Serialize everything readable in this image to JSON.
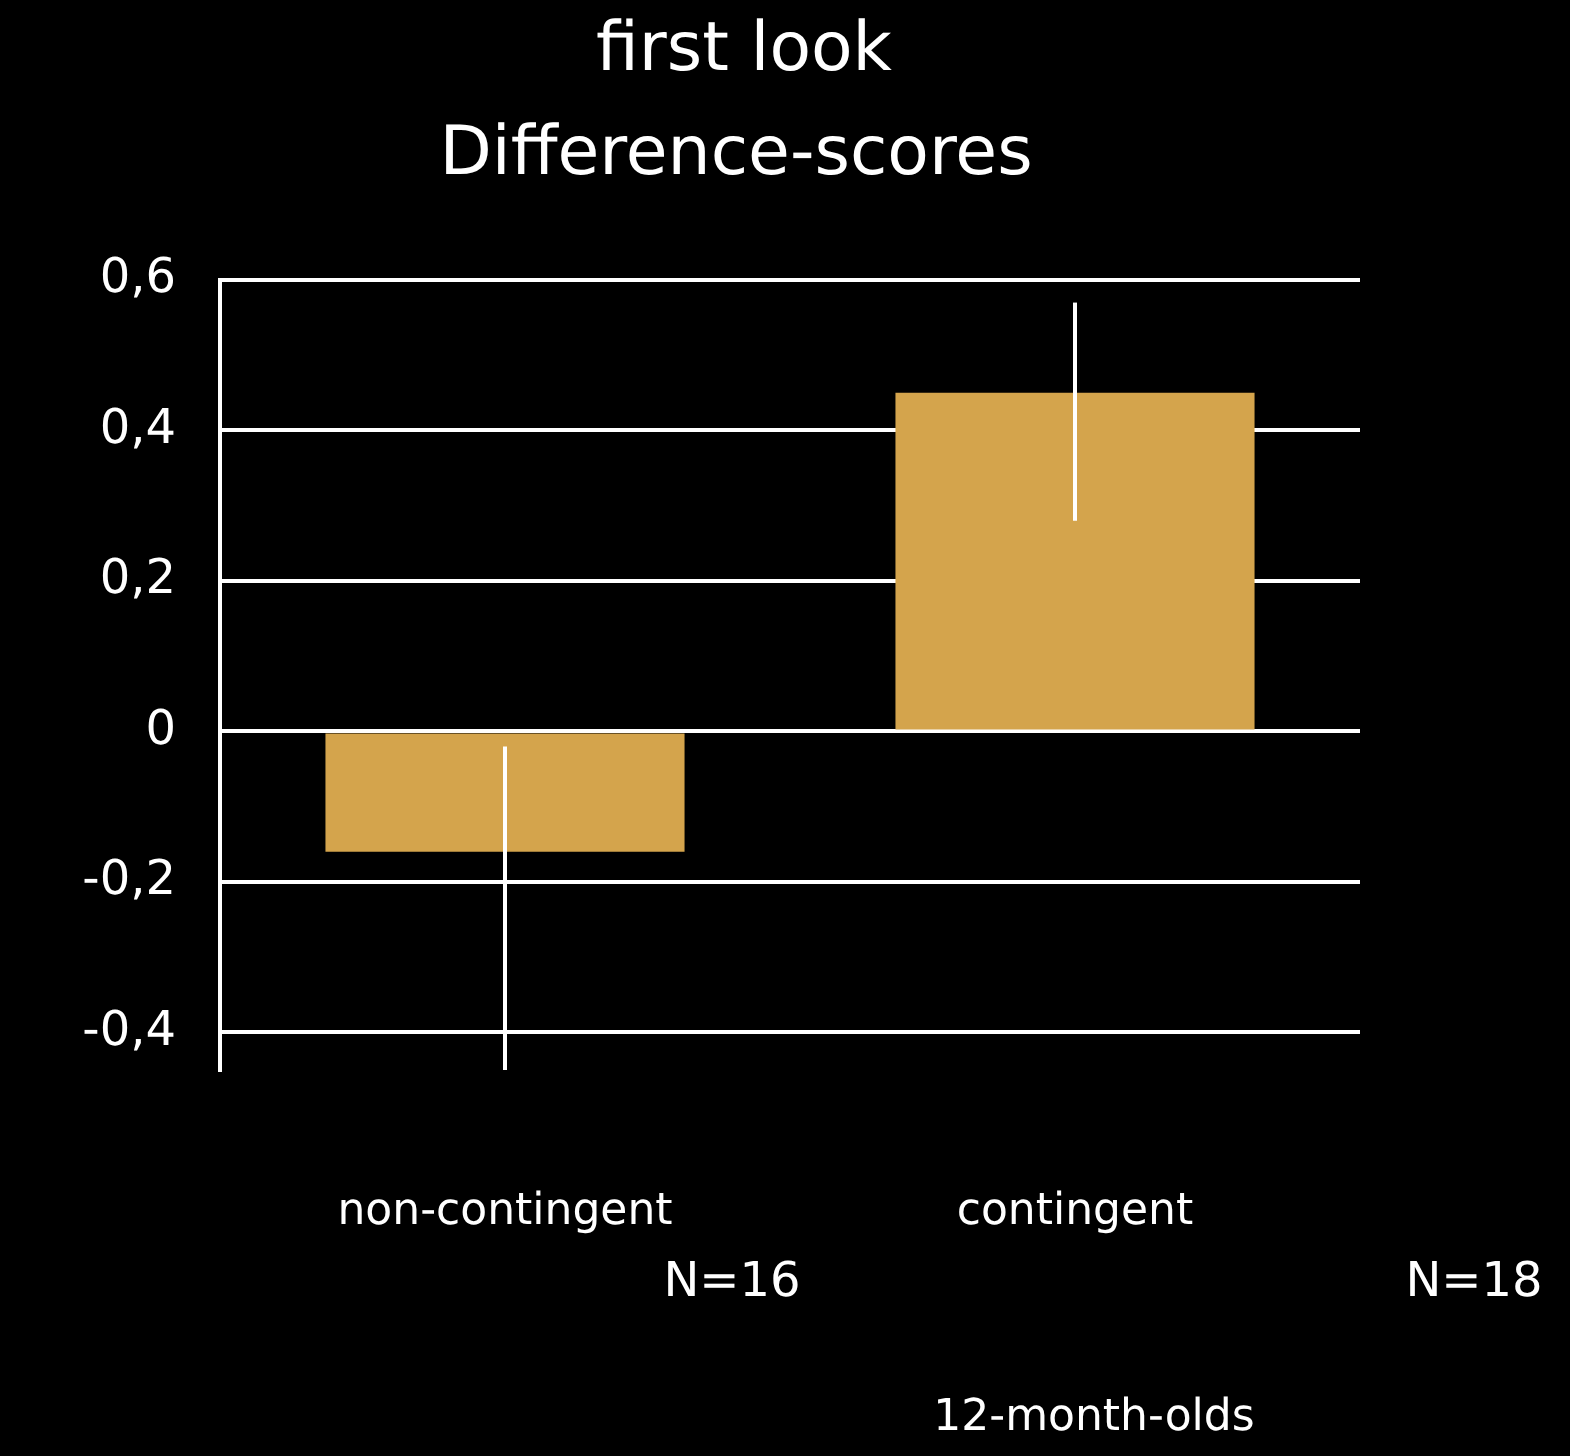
{
  "chart_data": {
    "type": "bar",
    "title": "first look",
    "subtitle": "Difference-scores",
    "xlabel": "12-month-olds",
    "categories": [
      "non-contingent",
      "contingent"
    ],
    "values": [
      -0.16,
      0.45
    ],
    "errors": [
      [
        -0.45,
        -0.02
      ],
      [
        0.28,
        0.57
      ]
    ],
    "color": "#d4a44c",
    "ylim": [
      -0.45,
      0.6
    ],
    "yticks": [
      {
        "value": -0.4,
        "label": "-0,4"
      },
      {
        "value": -0.2,
        "label": "-0,2"
      },
      0,
      {
        "value": 0.2,
        "label": "0,2"
      },
      {
        "value": 0.4,
        "label": "0,4"
      },
      {
        "value": 0.6,
        "label": "0,6"
      }
    ],
    "grid": "y",
    "legend": false,
    "annotations": [
      "N=16",
      "N=18"
    ]
  }
}
